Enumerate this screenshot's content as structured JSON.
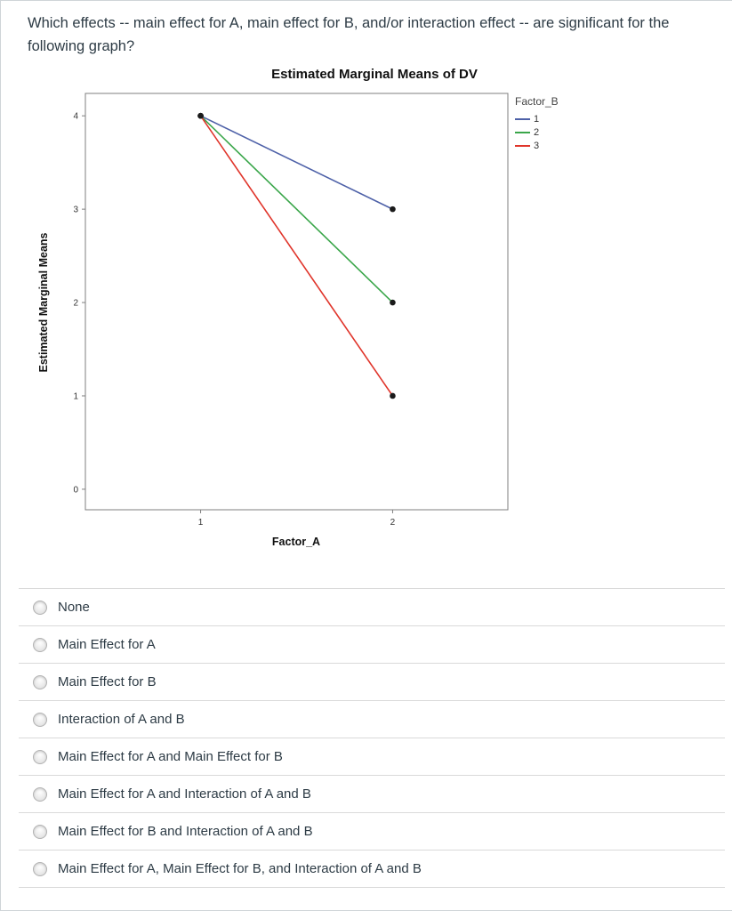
{
  "question": {
    "text": "Which effects -- main effect for A, main effect for B, and/or interaction effect -- are significant for the following graph?"
  },
  "chart_data": {
    "type": "line",
    "title": "Estimated Marginal Means of DV",
    "xlabel": "Factor_A",
    "ylabel": "Estimated Marginal Means",
    "legend_title": "Factor_B",
    "legend_position": "right",
    "x": [
      1,
      2
    ],
    "x_ticks": [
      1,
      2
    ],
    "y_ticks": [
      0,
      1,
      2,
      3,
      4
    ],
    "xlim": [
      0.4,
      2.6
    ],
    "ylim": [
      -0.22,
      4.24
    ],
    "grid": false,
    "point_color": "#1a1a1a",
    "series": [
      {
        "name": "1",
        "color": "#4e61a8",
        "values": [
          4,
          3
        ]
      },
      {
        "name": "2",
        "color": "#3aa64a",
        "values": [
          4,
          2
        ]
      },
      {
        "name": "3",
        "color": "#e0352b",
        "values": [
          4,
          1
        ]
      }
    ]
  },
  "options": [
    {
      "label": "None",
      "selected": false
    },
    {
      "label": "Main Effect for A",
      "selected": false
    },
    {
      "label": "Main Effect for B",
      "selected": false
    },
    {
      "label": "Interaction of A and B",
      "selected": false
    },
    {
      "label": "Main Effect for A and Main Effect for B",
      "selected": false
    },
    {
      "label": "Main Effect for A and Interaction of A and B",
      "selected": false
    },
    {
      "label": "Main Effect for B and Interaction of A and B",
      "selected": false
    },
    {
      "label": "Main Effect for A, Main Effect for B, and Interaction of A and B",
      "selected": false
    }
  ]
}
